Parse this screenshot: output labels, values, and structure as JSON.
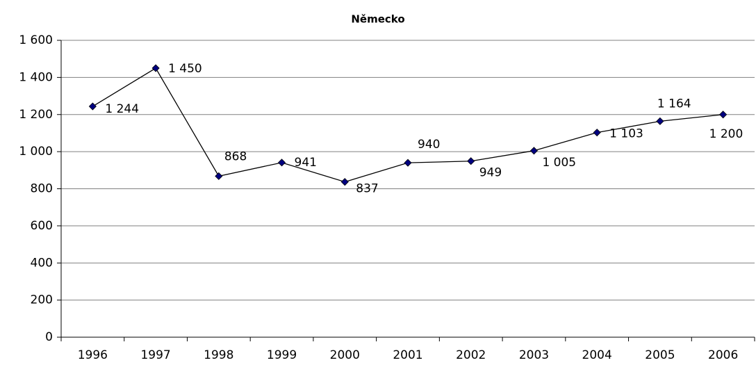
{
  "chart_data": {
    "type": "line",
    "title": "Německo",
    "categories": [
      "1996",
      "1997",
      "1998",
      "1999",
      "2000",
      "2001",
      "2002",
      "2003",
      "2004",
      "2005",
      "2006"
    ],
    "series": [
      {
        "name": "Německo",
        "color": "#000080",
        "values": [
          1244,
          1450,
          868,
          941,
          837,
          940,
          949,
          1005,
          1103,
          1164,
          1200
        ],
        "value_labels": [
          "1 244",
          "1 450",
          "868",
          "941",
          "837",
          "940",
          "949",
          "1 005",
          "1 103",
          "1 164",
          "1 200"
        ]
      }
    ],
    "ylim": [
      0,
      1600
    ],
    "yticks": [
      0,
      200,
      400,
      600,
      800,
      {
        "value": 1000,
        "label": "1 000"
      },
      {
        "value": 1200,
        "label": "1 200"
      },
      {
        "value": 1400,
        "label": "1 400"
      },
      {
        "value": 1600,
        "label": "1 600"
      }
    ],
    "grid": true
  }
}
